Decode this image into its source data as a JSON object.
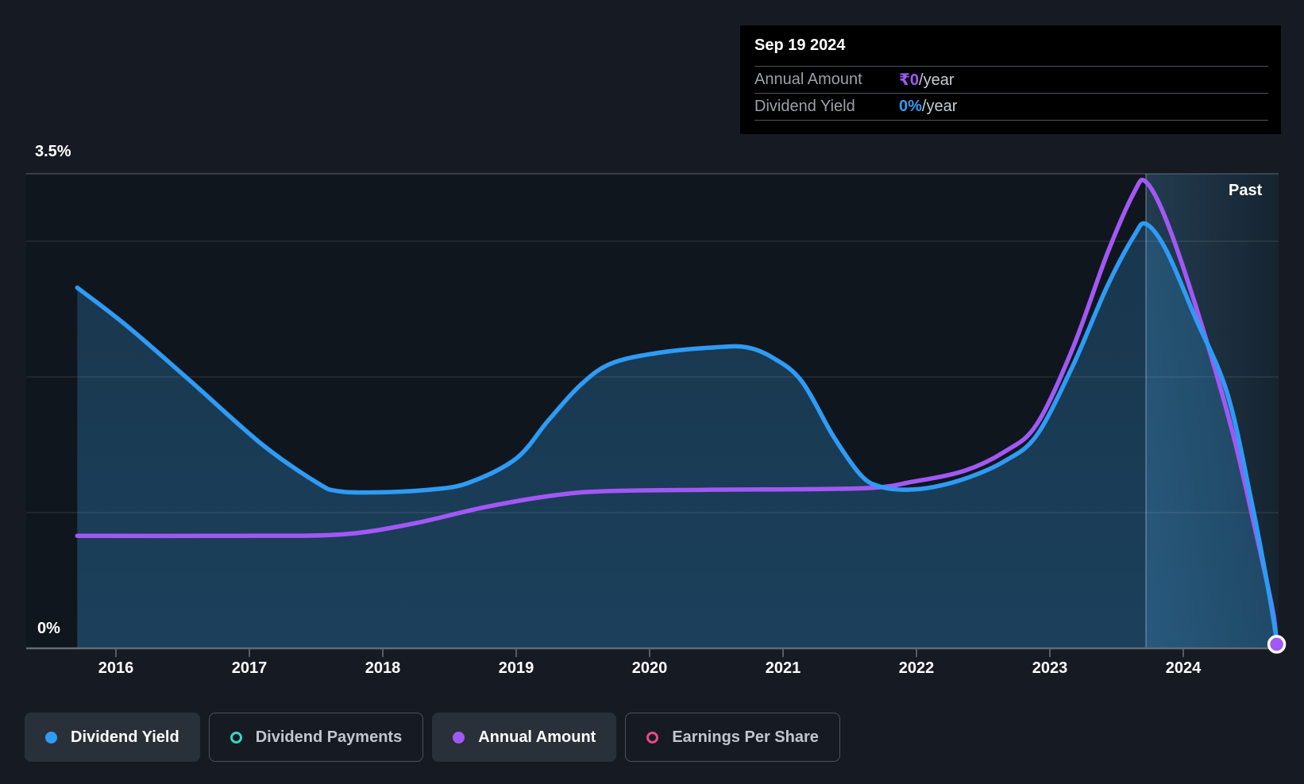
{
  "tooltip": {
    "date": "Sep 19 2024",
    "rows": [
      {
        "label": "Annual Amount",
        "value": "₹0",
        "suffix": "/year",
        "color": "#A158F5"
      },
      {
        "label": "Dividend Yield",
        "value": "0%",
        "suffix": "/year",
        "color": "#2E9BF5"
      }
    ]
  },
  "chart": {
    "past_label": "Past",
    "y_axis": {
      "top_label": "3.5%",
      "bottom_label": "0%"
    },
    "x_ticks": [
      "2016",
      "2017",
      "2018",
      "2019",
      "2020",
      "2021",
      "2022",
      "2023",
      "2024"
    ]
  },
  "legend": [
    {
      "label": "Dividend Yield",
      "active": true,
      "marker": "filled",
      "color": "#2E9BF5"
    },
    {
      "label": "Dividend Payments",
      "active": false,
      "marker": "ring",
      "color": "#38D6BF"
    },
    {
      "label": "Annual Amount",
      "active": true,
      "marker": "filled",
      "color": "#A158F5"
    },
    {
      "label": "Earnings Per Share",
      "active": false,
      "marker": "ring",
      "color": "#E34D84"
    }
  ],
  "chart_data": {
    "type": "line",
    "title": "",
    "x_range_years": [
      2015.71,
      2024.7
    ],
    "y_axis": {
      "min": 0,
      "max": 3.5,
      "unit": "%",
      "labels": [
        "0%",
        "3.5%"
      ],
      "gridlines_pct": [
        1,
        2,
        3
      ]
    },
    "vertical_line_year": 2023.72,
    "end_marker": {
      "series": "Annual Amount",
      "year": 2024.7,
      "value": 0.03
    },
    "series": [
      {
        "name": "Dividend Yield",
        "color": "#2E9BF5",
        "style": "line+area",
        "unit": "%",
        "points": [
          [
            2015.71,
            2.66
          ],
          [
            2016.08,
            2.38
          ],
          [
            2016.56,
            1.97
          ],
          [
            2017.1,
            1.5
          ],
          [
            2017.51,
            1.22
          ],
          [
            2017.66,
            1.16
          ],
          [
            2017.93,
            1.15
          ],
          [
            2018.35,
            1.17
          ],
          [
            2018.64,
            1.22
          ],
          [
            2019.0,
            1.4
          ],
          [
            2019.24,
            1.68
          ],
          [
            2019.48,
            1.94
          ],
          [
            2019.71,
            2.1
          ],
          [
            2020.07,
            2.18
          ],
          [
            2020.49,
            2.22
          ],
          [
            2020.73,
            2.22
          ],
          [
            2020.93,
            2.14
          ],
          [
            2021.14,
            1.97
          ],
          [
            2021.38,
            1.56
          ],
          [
            2021.59,
            1.27
          ],
          [
            2021.74,
            1.19
          ],
          [
            2021.92,
            1.17
          ],
          [
            2022.13,
            1.19
          ],
          [
            2022.39,
            1.26
          ],
          [
            2022.66,
            1.38
          ],
          [
            2022.9,
            1.57
          ],
          [
            2023.17,
            2.08
          ],
          [
            2023.43,
            2.67
          ],
          [
            2023.63,
            3.04
          ],
          [
            2023.72,
            3.13
          ],
          [
            2023.87,
            2.94
          ],
          [
            2024.09,
            2.44
          ],
          [
            2024.33,
            1.88
          ],
          [
            2024.51,
            1.09
          ],
          [
            2024.64,
            0.42
          ],
          [
            2024.7,
            0.06
          ]
        ]
      },
      {
        "name": "Annual Amount",
        "color": "#A158F5",
        "style": "line",
        "unit": "₹ (relative scale)",
        "points": [
          [
            2015.71,
            0.83
          ],
          [
            2016.92,
            0.83
          ],
          [
            2017.69,
            0.84
          ],
          [
            2018.23,
            0.92
          ],
          [
            2018.76,
            1.04
          ],
          [
            2019.3,
            1.13
          ],
          [
            2019.71,
            1.16
          ],
          [
            2020.49,
            1.17
          ],
          [
            2021.59,
            1.18
          ],
          [
            2021.98,
            1.23
          ],
          [
            2022.36,
            1.31
          ],
          [
            2022.66,
            1.45
          ],
          [
            2022.9,
            1.65
          ],
          [
            2023.17,
            2.21
          ],
          [
            2023.43,
            2.91
          ],
          [
            2023.63,
            3.36
          ],
          [
            2023.72,
            3.44
          ],
          [
            2023.88,
            3.14
          ],
          [
            2024.13,
            2.41
          ],
          [
            2024.37,
            1.59
          ],
          [
            2024.55,
            0.83
          ],
          [
            2024.67,
            0.28
          ],
          [
            2024.7,
            0.03
          ]
        ]
      }
    ]
  },
  "colors": {
    "background": "#161B23",
    "plot_background": "#10161E",
    "tooltip_background": "#000000",
    "dividend_yield_blue": "#2E9BF5",
    "annual_amount_purple": "#A158F5",
    "dividend_payments_teal": "#38D6BF",
    "earnings_per_share_pink": "#E34D84"
  }
}
